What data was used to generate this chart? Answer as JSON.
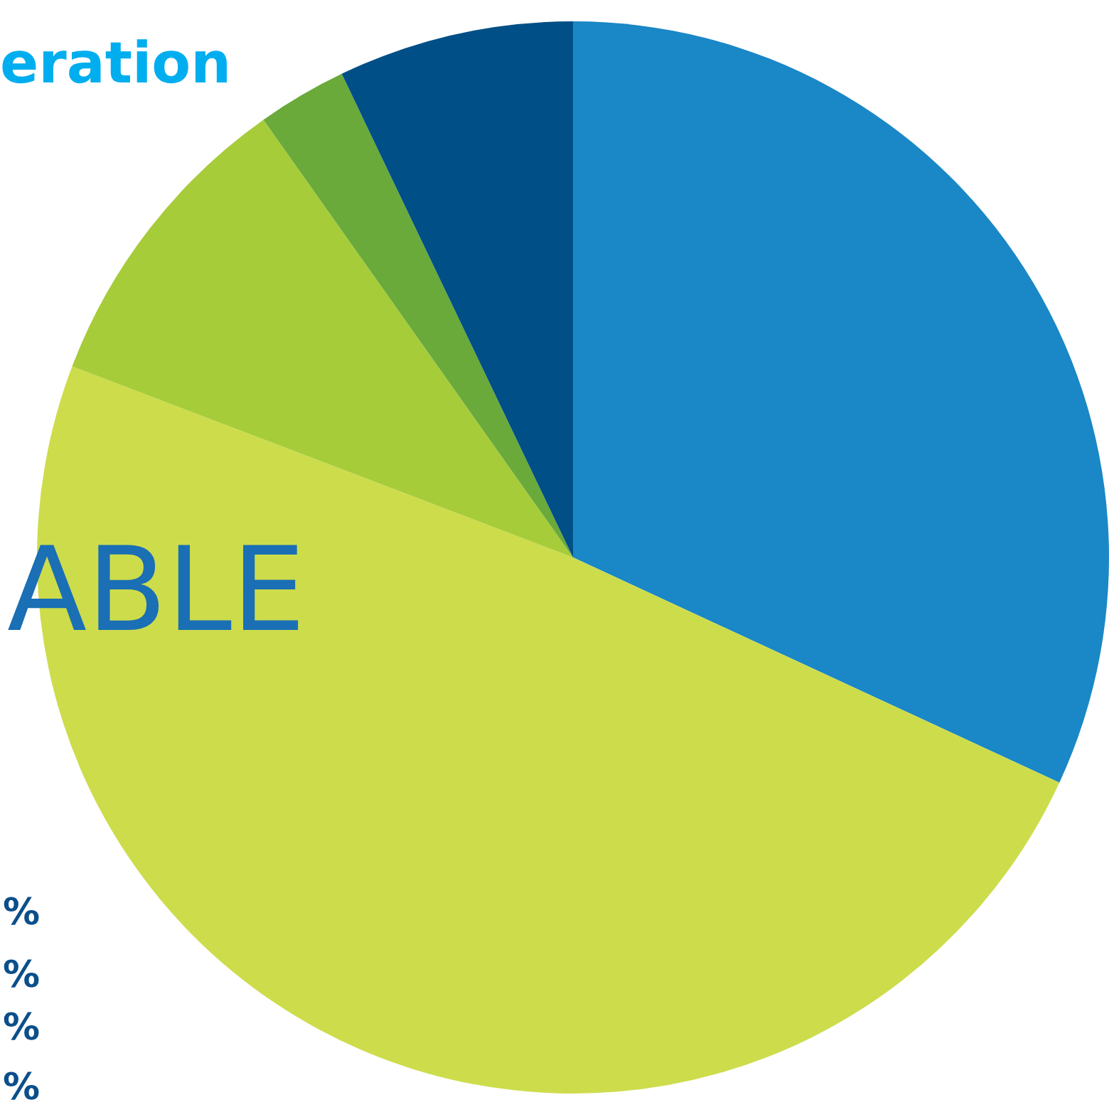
{
  "chart_data": {
    "type": "pie",
    "title": "eration",
    "categories": [
      null,
      null,
      null,
      null,
      null
    ],
    "values": [
      31.9,
      48.9,
      9.4,
      2.7,
      7.1
    ],
    "colors": [
      "#1a87c6",
      "#cddc4b",
      "#a6cc3a",
      "#6aaa3a",
      "#004f86"
    ],
    "legend": false,
    "annotations": [
      "ABLE",
      "%",
      "%",
      "%",
      "%"
    ]
  }
}
